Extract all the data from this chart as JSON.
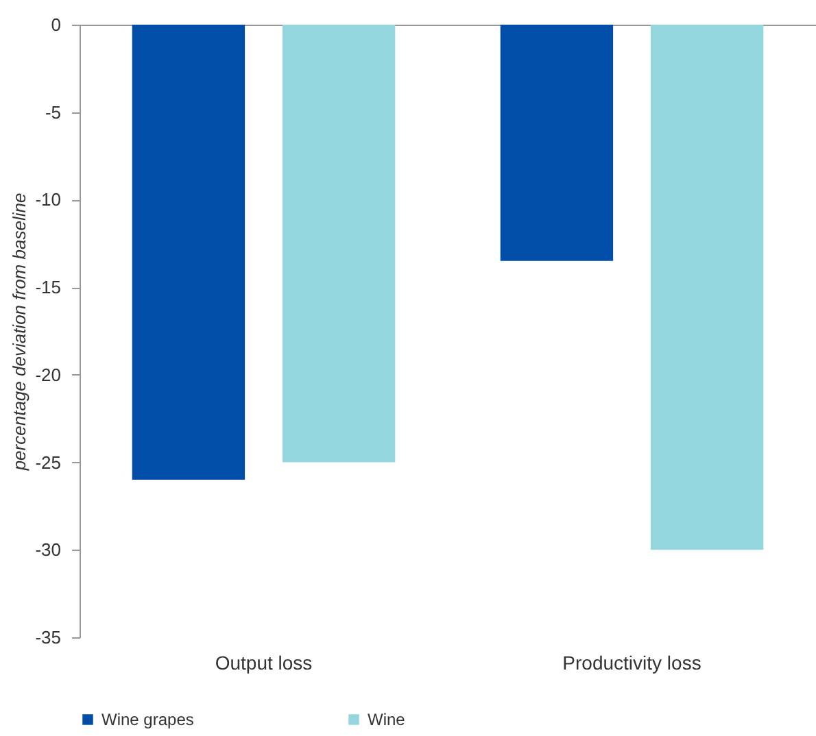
{
  "chart_data": {
    "type": "bar",
    "ylabel": "percentage deviation from baseline",
    "categories": [
      "Output loss",
      "Productivity loss"
    ],
    "series": [
      {
        "name": "Wine grapes",
        "color": "#004ea8",
        "values": [
          -26,
          -13.5
        ]
      },
      {
        "name": "Wine",
        "color": "#94d6dd",
        "values": [
          -25,
          -30
        ]
      }
    ],
    "ylim": [
      -35,
      0
    ],
    "yticks": [
      -35,
      -30,
      -25,
      -20,
      -15,
      -10,
      -5,
      0
    ],
    "grid": false,
    "legend": "bottom"
  }
}
